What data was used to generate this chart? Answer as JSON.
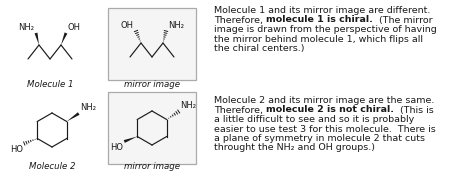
{
  "bg_color": "#ffffff",
  "line_color": "#1a1a1a",
  "box_edge_color": "#aaaaaa",
  "box_face_color": "#f5f5f5",
  "font_size_text": 6.8,
  "font_size_label": 6.2,
  "font_size_atom": 6.0,
  "mol1_label": "Molecule 1",
  "mol1_mirror_label": "mirror image",
  "mol2_label": "Molecule 2",
  "mol2_mirror_label": "mirror image",
  "text1_line1": "Molecule 1 and its mirror image are different.",
  "text1_line2a": "Therefore, ",
  "text1_line2b": "molecule 1 is chiral.",
  "text1_line2c": "  (The mirror",
  "text1_line3": "image is drawn from the perspective of having",
  "text1_line4": "the mirror behind molecule 1, which flips all",
  "text1_line5": "the chiral centers.)",
  "text2_line1": "Molecule 2 and its mirror image are the same.",
  "text2_line2a": "Therefore, ",
  "text2_line2b": "molecule 2 is not chiral.",
  "text2_line2c": "  (This is",
  "text2_line3": "a little difficult to see and so it is probably",
  "text2_line4": "easier to use test 3 for this molecule.  There is",
  "text2_line5": "a plane of symmetry in molecule 2 that cuts",
  "text2_line6": "throught the NH₂ and OH groups.)"
}
